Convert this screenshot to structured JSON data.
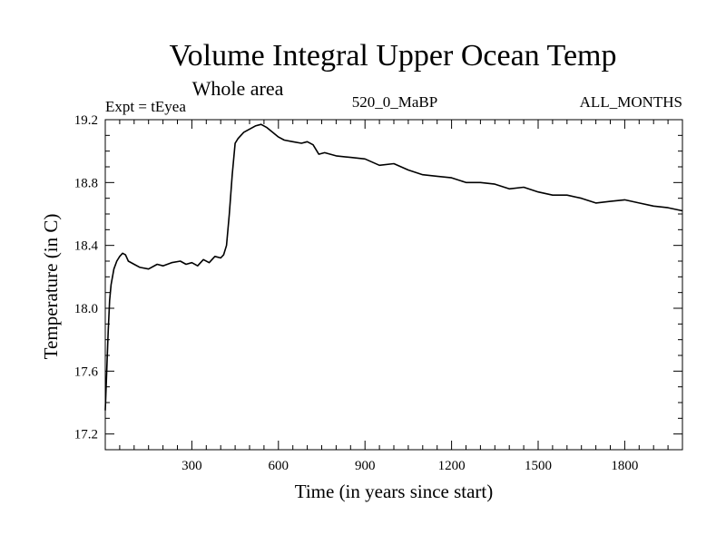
{
  "chart_data": {
    "type": "line",
    "title": "Volume Integral Upper Ocean Temp",
    "subtitle": "Whole area",
    "experiment_label": "Expt = tEyea",
    "period_label": "520_0_MaBP",
    "months_label": "ALL_MONTHS",
    "xlabel": "Time (in years since start)",
    "ylabel": "Temperature (in C)",
    "xlim": [
      0,
      2000
    ],
    "ylim": [
      17.1,
      19.2
    ],
    "xticks": [
      300,
      600,
      900,
      1200,
      1500,
      1800
    ],
    "yticks": [
      17.2,
      17.6,
      18.0,
      18.4,
      18.8,
      19.2
    ],
    "x_minor_step": 50,
    "y_minor_step": 0.1,
    "grid": false,
    "series": [
      {
        "name": "Volume integral upper ocean temperature",
        "color": "#000000",
        "x": [
          0,
          5,
          10,
          15,
          20,
          30,
          40,
          50,
          60,
          70,
          80,
          100,
          120,
          150,
          180,
          200,
          230,
          260,
          280,
          300,
          320,
          340,
          360,
          380,
          400,
          410,
          420,
          430,
          440,
          450,
          460,
          470,
          480,
          500,
          520,
          540,
          560,
          580,
          600,
          620,
          650,
          680,
          700,
          720,
          740,
          760,
          800,
          850,
          900,
          950,
          1000,
          1050,
          1100,
          1150,
          1200,
          1250,
          1300,
          1350,
          1400,
          1450,
          1500,
          1550,
          1600,
          1650,
          1700,
          1750,
          1800,
          1850,
          1900,
          1950,
          2000
        ],
        "y": [
          17.35,
          17.6,
          17.85,
          18.05,
          18.15,
          18.25,
          18.3,
          18.33,
          18.35,
          18.34,
          18.3,
          18.28,
          18.26,
          18.25,
          18.28,
          18.27,
          18.29,
          18.3,
          18.28,
          18.29,
          18.27,
          18.31,
          18.29,
          18.33,
          18.32,
          18.34,
          18.4,
          18.6,
          18.85,
          19.05,
          19.08,
          19.1,
          19.12,
          19.14,
          19.16,
          19.17,
          19.15,
          19.12,
          19.09,
          19.07,
          19.06,
          19.05,
          19.06,
          19.04,
          18.98,
          18.99,
          18.97,
          18.96,
          18.95,
          18.91,
          18.92,
          18.88,
          18.85,
          18.84,
          18.83,
          18.8,
          18.8,
          18.79,
          18.76,
          18.77,
          18.74,
          18.72,
          18.72,
          18.7,
          18.67,
          18.68,
          18.69,
          18.67,
          18.65,
          18.64,
          18.62
        ]
      }
    ]
  }
}
